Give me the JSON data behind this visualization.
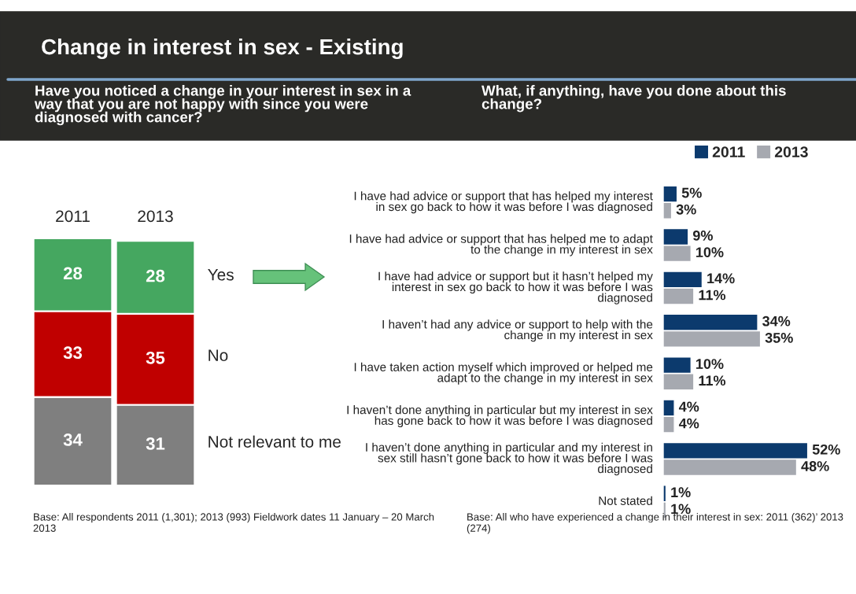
{
  "chart_data": [
    {
      "type": "bar",
      "stacked": true,
      "title": "Change in interest in sex - Existing",
      "subtitle": "Have you noticed a change in your interest in sex in a way that you are not happy with since you were diagnosed with cancer?",
      "categories": [
        "2011",
        "2013"
      ],
      "series": [
        {
          "name": "Not relevant to me",
          "color": "#7f7f7f",
          "values": [
            34,
            31
          ]
        },
        {
          "name": "No",
          "color": "#c00000",
          "values": [
            33,
            35
          ]
        },
        {
          "name": "Yes",
          "color": "#45a760",
          "values": [
            28,
            28
          ]
        }
      ],
      "data_labels": true,
      "tick_labels": "x",
      "legend": false,
      "grid": false,
      "annotations": [
        "Base: All respondents 2011 (1,301); 2013 (993) Fieldwork dates 11 January – 20 March 2013"
      ]
    },
    {
      "type": "bar",
      "orientation": "horizontal",
      "subtitle": "What, if anything, have you done about this change?",
      "categories": [
        "I have had advice or support that has helped my interest in sex go back to how it was before I was diagnosed",
        "I have had advice or support that has helped me to adapt to the change in my interest in sex",
        "I have had advice or support but it hasn’t helped my interest in sex go back to how it was before I was diagnosed",
        "I haven’t had any advice or support to help with the change in my interest in sex",
        "I have taken action myself which improved or helped me adapt to the change in my interest in sex",
        "I haven’t done anything in particular but my interest in sex has gone back to how it was before I was diagnosed",
        "I haven’t done anything in particular and my interest in sex still hasn’t gone back to how it was before I was diagnosed",
        "Not stated"
      ],
      "series": [
        {
          "name": "2011",
          "color": "#0c3a6d",
          "values": [
            5,
            9,
            14,
            34,
            10,
            4,
            52,
            1
          ],
          "value_labels": [
            "5%",
            "9%",
            "14%",
            "34%",
            "10%",
            "4%",
            "52%",
            "1%"
          ]
        },
        {
          "name": "2013",
          "color": "#a6a9b0",
          "values": [
            3,
            10,
            11,
            35,
            11,
            4,
            48,
            1
          ],
          "value_labels": [
            "3%",
            "10%",
            "11%",
            "35%",
            "11%",
            "4%",
            "48%",
            "1%"
          ]
        }
      ],
      "tick_labels": "y",
      "legend": "top right",
      "grid": false,
      "annotations": [
        "Base: All who have experienced a change in their interest in sex: 2011 (362)’ 2013 (274)"
      ]
    }
  ]
}
